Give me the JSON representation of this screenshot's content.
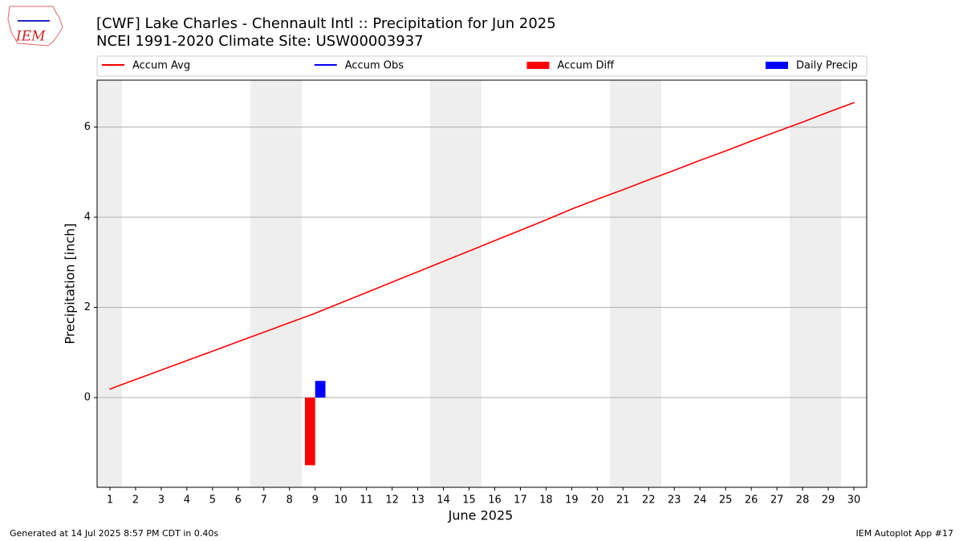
{
  "logo_text": "IEM",
  "footer_left": "Generated at 14 Jul 2025 8:57 PM CDT in 0.40s",
  "footer_right": "IEM Autoplot App #17",
  "chart_data": {
    "type": "bar",
    "title": "[CWF] Lake Charles - Chennault Intl :: Precipitation for Jun 2025",
    "subtitle": "NCEI 1991-2020 Climate Site: USW00003937",
    "x_label": "June 2025",
    "y_label": "Precipitation [inch]",
    "x": [
      1,
      2,
      3,
      4,
      5,
      6,
      7,
      8,
      9,
      10,
      11,
      12,
      13,
      14,
      15,
      16,
      17,
      18,
      19,
      20,
      21,
      22,
      23,
      24,
      25,
      26,
      27,
      28,
      29,
      30
    ],
    "xlim": [
      0.5,
      30.5
    ],
    "xticks": [
      1,
      2,
      3,
      4,
      5,
      6,
      7,
      8,
      9,
      10,
      11,
      12,
      13,
      14,
      15,
      16,
      17,
      18,
      19,
      20,
      21,
      22,
      23,
      24,
      25,
      26,
      27,
      28,
      29,
      30
    ],
    "ylim": [
      -1.99,
      7.04
    ],
    "yticks": [
      0,
      2,
      4,
      6
    ],
    "grid": true,
    "legend": "top",
    "series": [
      {
        "name": "Accum Avg",
        "kind": "line",
        "color": "#ff0000",
        "values": [
          0.19,
          0.4,
          0.61,
          0.82,
          1.03,
          1.24,
          1.45,
          1.66,
          1.87,
          2.1,
          2.33,
          2.56,
          2.79,
          3.02,
          3.25,
          3.48,
          3.71,
          3.94,
          4.18,
          4.4,
          4.61,
          4.83,
          5.04,
          5.26,
          5.47,
          5.69,
          5.9,
          6.11,
          6.33,
          6.54
        ]
      },
      {
        "name": "Accum Obs",
        "kind": "line",
        "color": "#0000ff",
        "values": [
          null,
          null,
          null,
          null,
          null,
          null,
          null,
          null,
          0.37,
          null,
          null,
          null,
          null,
          null,
          null,
          null,
          null,
          null,
          null,
          null,
          null,
          null,
          null,
          null,
          null,
          null,
          null,
          null,
          null,
          null
        ]
      },
      {
        "name": "Accum Diff",
        "kind": "bar",
        "color": "#ff0000",
        "values": [
          null,
          null,
          null,
          null,
          null,
          null,
          null,
          null,
          -1.5,
          null,
          null,
          null,
          null,
          null,
          null,
          null,
          null,
          null,
          null,
          null,
          null,
          null,
          null,
          null,
          null,
          null,
          null,
          null,
          null,
          null
        ]
      },
      {
        "name": "Daily Precip",
        "kind": "bar",
        "color": "#0000ff",
        "values": [
          null,
          null,
          null,
          null,
          null,
          null,
          null,
          null,
          0.37,
          null,
          null,
          null,
          null,
          null,
          null,
          null,
          null,
          null,
          null,
          null,
          null,
          null,
          null,
          null,
          null,
          null,
          null,
          null,
          null,
          null
        ]
      }
    ]
  }
}
